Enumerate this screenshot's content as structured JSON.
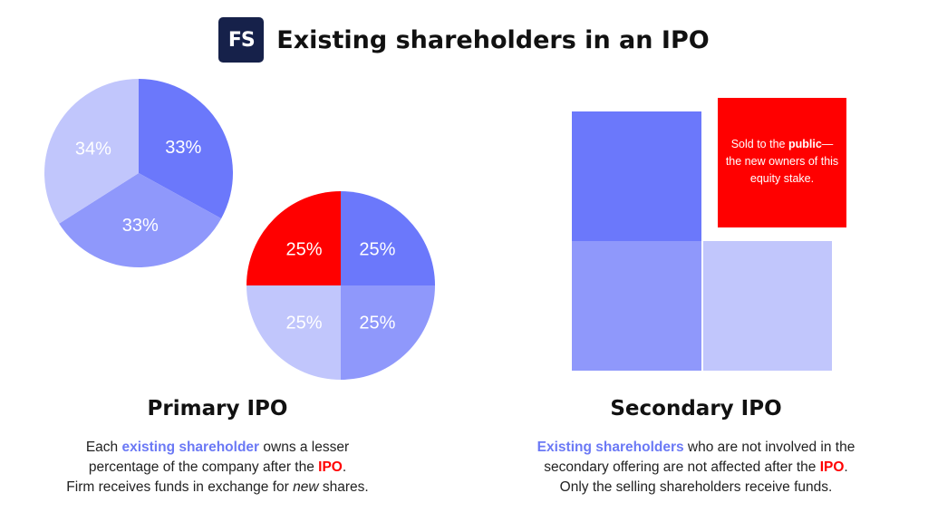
{
  "header": {
    "logo_text": "FS",
    "title": "Existing shareholders in an IPO"
  },
  "colors": {
    "dark_blue": "#6b78fb",
    "medium_blue": "#8f98fb",
    "light_blue": "#c1c6fc",
    "red": "#ff0000",
    "brand_navy": "#16214a"
  },
  "primary_before_pie": {
    "slices": [
      {
        "label": "33%",
        "value": 33,
        "color": "#6b78fb"
      },
      {
        "label": "33%",
        "value": 33,
        "color": "#8f98fb"
      },
      {
        "label": "34%",
        "value": 34,
        "color": "#c1c6fc"
      }
    ]
  },
  "primary_after_pie": {
    "slices": [
      {
        "label": "25%",
        "value": 25,
        "color": "#6b78fb"
      },
      {
        "label": "25%",
        "value": 25,
        "color": "#8f98fb"
      },
      {
        "label": "25%",
        "value": 25,
        "color": "#c1c6fc"
      },
      {
        "label": "25%",
        "value": 25,
        "color": "#ff0000"
      }
    ]
  },
  "secondary": {
    "public_box": {
      "text_before": "Sold to the ",
      "text_bold": "public",
      "text_after": "— the new owners of this equity stake."
    }
  },
  "primary_section": {
    "title": "Primary IPO",
    "line1_a": "Each ",
    "line1_b": "existing shareholder",
    "line1_c": " owns a lesser",
    "line2_a": "percentage of the company after the ",
    "line2_b": "IPO",
    "line2_c": ".",
    "line3_a": "Firm receives funds in exchange for ",
    "line3_b": "new",
    "line3_c": " shares."
  },
  "secondary_section": {
    "title": "Secondary IPO",
    "line1_a": "Existing shareholders",
    "line1_b": " who are not involved in the",
    "line2_a": "secondary offering are not affected after the ",
    "line2_b": "IPO",
    "line2_c": ".",
    "line3": "Only the selling shareholders receive funds."
  }
}
